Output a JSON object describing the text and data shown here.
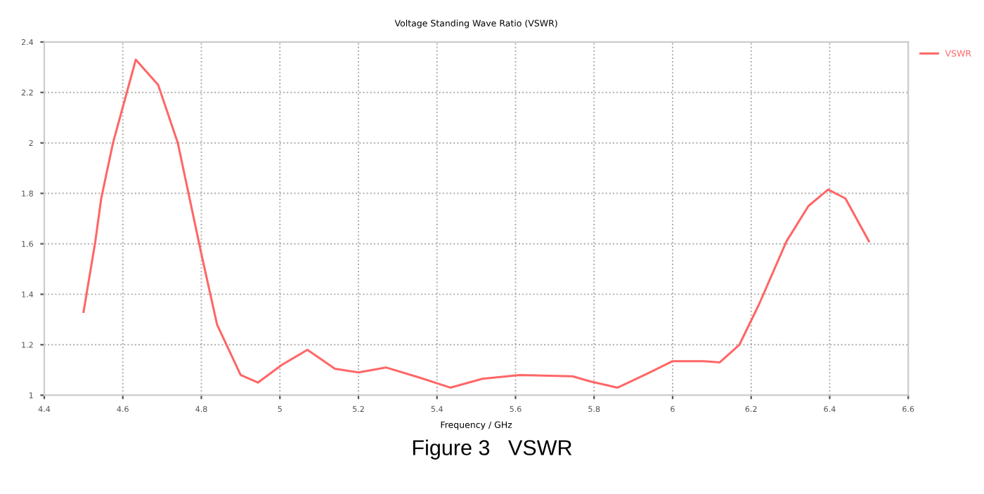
{
  "chart_data": {
    "type": "line",
    "title": "Voltage Standing Wave Ratio (VSWR)",
    "xlabel": "Frequency / GHz",
    "annotations": [
      "Figure 3   VSWR"
    ],
    "x": [
      4.5,
      4.53,
      4.545,
      4.575,
      4.633,
      4.69,
      4.74,
      4.8,
      4.84,
      4.9,
      4.944,
      5.005,
      5.07,
      5.14,
      5.2,
      5.27,
      5.355,
      5.434,
      5.516,
      5.61,
      5.745,
      5.79,
      5.86,
      5.935,
      6.0,
      6.08,
      6.12,
      6.17,
      6.22,
      6.29,
      6.346,
      6.396,
      6.44,
      6.5
    ],
    "series": [
      {
        "name": "VSWR",
        "color": "#ff6666",
        "values": [
          1.33,
          1.61,
          1.78,
          2.0,
          2.33,
          2.23,
          2.0,
          1.56,
          1.28,
          1.08,
          1.05,
          1.12,
          1.18,
          1.105,
          1.09,
          1.11,
          1.07,
          1.03,
          1.065,
          1.08,
          1.075,
          1.055,
          1.03,
          1.085,
          1.135,
          1.135,
          1.13,
          1.2,
          1.36,
          1.61,
          1.75,
          1.815,
          1.78,
          1.61
        ]
      }
    ],
    "xlim": [
      4.4,
      6.6
    ],
    "xticks": [
      4.4,
      4.6,
      4.8,
      5,
      5.2,
      5.4,
      5.6,
      5.8,
      6,
      6.2,
      6.4,
      6.6
    ],
    "ylim": [
      1,
      2.4
    ],
    "yticks": [
      1,
      1.2,
      1.4,
      1.6,
      1.8,
      2,
      2.2,
      2.4
    ],
    "grid": true,
    "legend": "top right",
    "line_style": "solid",
    "marker": "none"
  }
}
